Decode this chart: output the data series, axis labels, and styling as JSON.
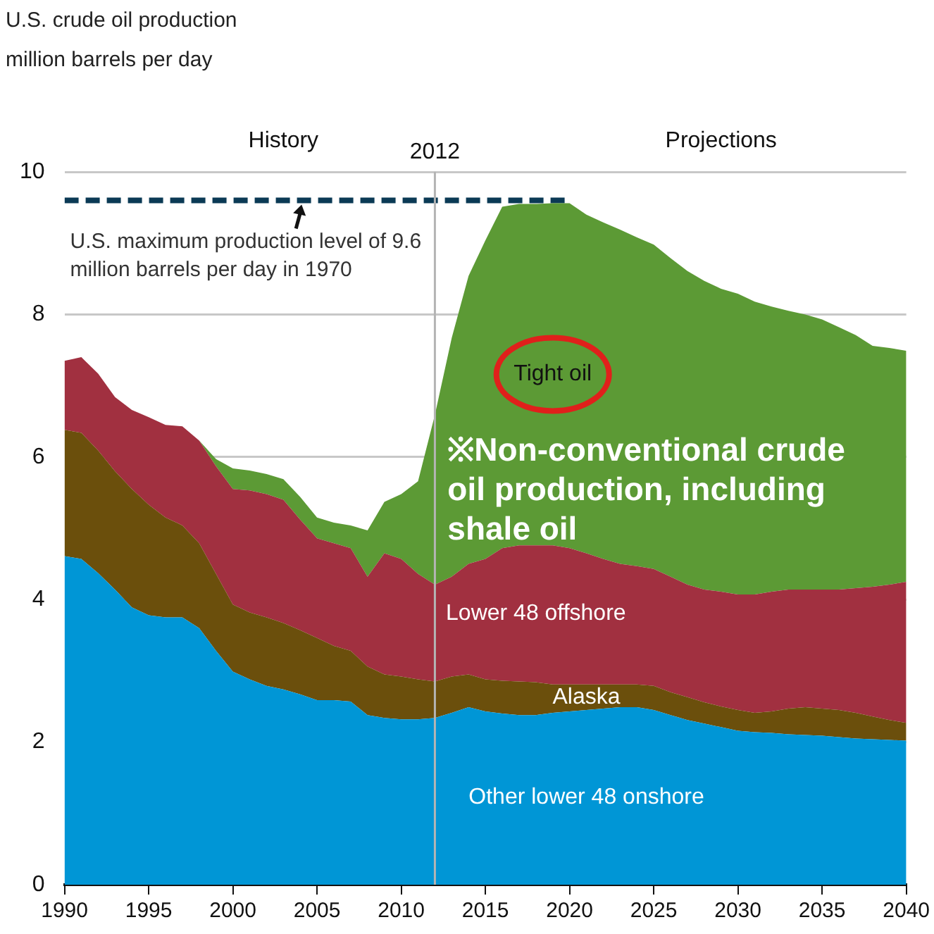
{
  "chart_data": {
    "type": "area",
    "title": "U.S. crude oil production",
    "ylabel": "million barrels per day",
    "stacked": true,
    "x": [
      1990,
      1991,
      1992,
      1993,
      1994,
      1995,
      1996,
      1997,
      1998,
      1999,
      2000,
      2001,
      2002,
      2003,
      2004,
      2005,
      2006,
      2007,
      2008,
      2009,
      2010,
      2011,
      2012,
      2013,
      2014,
      2015,
      2016,
      2017,
      2018,
      2019,
      2020,
      2021,
      2022,
      2023,
      2024,
      2025,
      2026,
      2027,
      2028,
      2029,
      2030,
      2031,
      2032,
      2033,
      2034,
      2035,
      2036,
      2037,
      2038,
      2039,
      2040
    ],
    "series": [
      {
        "name": "Other lower 48 onshore",
        "color": "#0096d6",
        "values": [
          4.61,
          4.57,
          4.37,
          4.14,
          3.89,
          3.78,
          3.75,
          3.75,
          3.6,
          3.28,
          2.99,
          2.88,
          2.79,
          2.74,
          2.67,
          2.59,
          2.59,
          2.57,
          2.38,
          2.34,
          2.32,
          2.32,
          2.34,
          2.41,
          2.49,
          2.43,
          2.4,
          2.38,
          2.38,
          2.41,
          2.43,
          2.45,
          2.47,
          2.49,
          2.49,
          2.45,
          2.38,
          2.31,
          2.26,
          2.21,
          2.16,
          2.14,
          2.13,
          2.11,
          2.1,
          2.09,
          2.07,
          2.05,
          2.04,
          2.03,
          2.02
        ]
      },
      {
        "name": "Alaska",
        "color": "#6b4f0c",
        "values": [
          1.77,
          1.77,
          1.72,
          1.66,
          1.66,
          1.55,
          1.4,
          1.29,
          1.19,
          1.08,
          0.94,
          0.94,
          0.96,
          0.93,
          0.9,
          0.87,
          0.76,
          0.71,
          0.68,
          0.61,
          0.6,
          0.56,
          0.51,
          0.51,
          0.46,
          0.45,
          0.46,
          0.47,
          0.46,
          0.4,
          0.38,
          0.36,
          0.34,
          0.32,
          0.32,
          0.34,
          0.32,
          0.32,
          0.3,
          0.29,
          0.29,
          0.27,
          0.3,
          0.36,
          0.39,
          0.38,
          0.38,
          0.36,
          0.32,
          0.28,
          0.25
        ]
      },
      {
        "name": "Lower 48 offshore",
        "color": "#a13040",
        "values": [
          0.97,
          1.06,
          1.08,
          1.04,
          1.11,
          1.23,
          1.3,
          1.39,
          1.44,
          1.51,
          1.62,
          1.71,
          1.73,
          1.73,
          1.55,
          1.4,
          1.44,
          1.44,
          1.26,
          1.7,
          1.65,
          1.48,
          1.36,
          1.4,
          1.55,
          1.69,
          1.86,
          1.91,
          1.92,
          1.95,
          1.91,
          1.84,
          1.76,
          1.69,
          1.66,
          1.64,
          1.62,
          1.58,
          1.58,
          1.61,
          1.62,
          1.66,
          1.68,
          1.67,
          1.65,
          1.67,
          1.69,
          1.75,
          1.82,
          1.9,
          1.98
        ]
      },
      {
        "name": "Tight oil",
        "color": "#5c9a35",
        "values": [
          0,
          0,
          0,
          0,
          0,
          0,
          0,
          0,
          0,
          0.1,
          0.29,
          0.28,
          0.28,
          0.29,
          0.32,
          0.29,
          0.29,
          0.32,
          0.65,
          0.72,
          0.91,
          1.3,
          2.38,
          3.35,
          4.04,
          4.47,
          4.79,
          4.79,
          4.79,
          4.8,
          4.84,
          4.75,
          4.72,
          4.69,
          4.61,
          4.55,
          4.47,
          4.4,
          4.33,
          4.25,
          4.22,
          4.11,
          4,
          3.91,
          3.86,
          3.79,
          3.68,
          3.55,
          3.38,
          3.32,
          3.24
        ]
      },
      {
        "type": "line",
        "line_style": "dashed",
        "color": "#0b3a55",
        "x": [
          1990,
          2020
        ],
        "values": [
          9.6,
          9.6
        ]
      }
    ],
    "xlim": [
      1990,
      2040
    ],
    "xticks": [
      1990,
      1995,
      2000,
      2005,
      2010,
      2015,
      2020,
      2025,
      2030,
      2035,
      2040
    ],
    "ylim": [
      0,
      10
    ],
    "yticks": [
      0,
      2,
      4,
      6,
      8,
      10
    ],
    "grid": "y",
    "ref_lines": [
      {
        "axis": "x",
        "value": 2012,
        "label": "2012",
        "color": "#b4b4b4"
      }
    ],
    "annotations": [
      "History",
      "Projections",
      {
        "text": "U.S. maximum production level of 9.6 million barrels per day in 1970",
        "x": 2004,
        "y": 9.6
      },
      "※Non-conventional crude oil production, including shale oil"
    ]
  }
}
